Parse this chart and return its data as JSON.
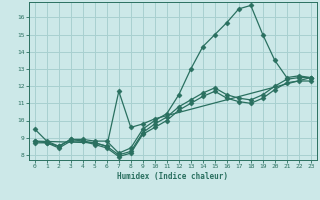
{
  "xlabel": "Humidex (Indice chaleur)",
  "bg_color": "#cce8e8",
  "grid_color": "#a8d0d0",
  "line_color": "#2a7060",
  "xlim": [
    -0.5,
    23.5
  ],
  "ylim": [
    7.7,
    16.9
  ],
  "xticks": [
    0,
    1,
    2,
    3,
    4,
    5,
    6,
    7,
    8,
    9,
    10,
    11,
    12,
    13,
    14,
    15,
    16,
    17,
    18,
    19,
    20,
    21,
    22,
    23
  ],
  "yticks": [
    8,
    9,
    10,
    11,
    12,
    13,
    14,
    15,
    16
  ],
  "series": [
    {
      "x": [
        0,
        1,
        2,
        3,
        4,
        5,
        6,
        7,
        8,
        9,
        10,
        11,
        12,
        13,
        14,
        15,
        16,
        17,
        18,
        19,
        20,
        21,
        22,
        23
      ],
      "y": [
        9.5,
        8.8,
        8.5,
        8.9,
        8.9,
        8.8,
        8.8,
        8.1,
        8.4,
        9.5,
        10.0,
        10.4,
        11.5,
        13.0,
        14.3,
        15.0,
        15.7,
        16.5,
        16.7,
        15.0,
        13.5,
        12.5,
        12.6,
        12.5
      ]
    },
    {
      "x": [
        0,
        1,
        2,
        3,
        4,
        5,
        6,
        7,
        8,
        9,
        10,
        11,
        12,
        13,
        14,
        15,
        16,
        17,
        18,
        19,
        20,
        21,
        22,
        23
      ],
      "y": [
        8.8,
        8.7,
        8.5,
        8.9,
        8.8,
        8.7,
        8.5,
        8.0,
        8.2,
        9.3,
        9.8,
        10.2,
        10.8,
        11.2,
        11.6,
        11.9,
        11.5,
        11.3,
        11.2,
        11.5,
        12.0,
        12.4,
        12.5,
        12.5
      ]
    },
    {
      "x": [
        0,
        1,
        2,
        3,
        4,
        5,
        6,
        7,
        8,
        9,
        10,
        11,
        12,
        13,
        14,
        15,
        16,
        17,
        18,
        19,
        20,
        21,
        22,
        23
      ],
      "y": [
        8.7,
        8.7,
        8.4,
        8.8,
        8.8,
        8.6,
        8.4,
        7.9,
        8.1,
        9.2,
        9.6,
        10.0,
        10.6,
        11.0,
        11.4,
        11.7,
        11.3,
        11.1,
        11.0,
        11.3,
        11.8,
        12.2,
        12.3,
        12.3
      ]
    },
    {
      "x": [
        0,
        5,
        6,
        7,
        8,
        9,
        10,
        23
      ],
      "y": [
        8.8,
        8.7,
        8.5,
        11.7,
        9.6,
        9.8,
        10.1,
        12.5
      ]
    }
  ]
}
